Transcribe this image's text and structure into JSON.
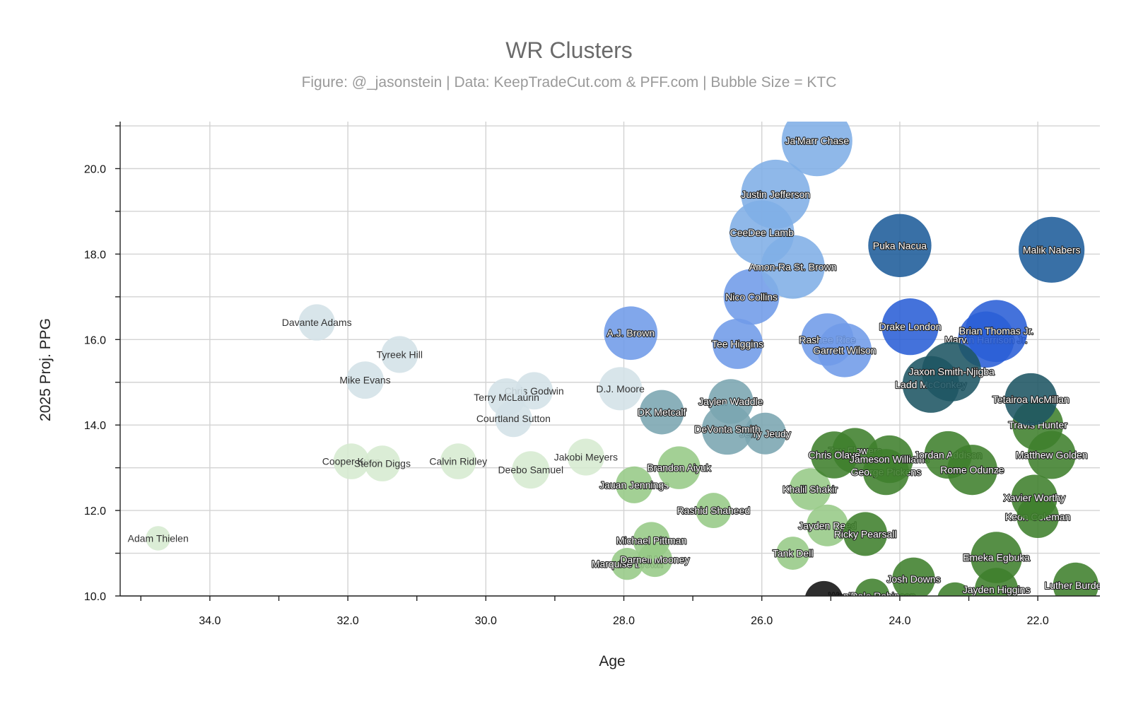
{
  "chart_data": {
    "type": "scatter",
    "title": "WR Clusters",
    "subtitle": "Figure: @_jasonstein | Data: KeepTradeCut.com & PFF.com | Bubble Size = KTC",
    "xlabel": "Age",
    "ylabel": "2025 Proj. PPG",
    "xlim": [
      35.3,
      21.1
    ],
    "ylim": [
      10.0,
      21.1
    ],
    "x_reversed": true,
    "x_ticks": [
      "34.0",
      "32.0",
      "30.0",
      "28.0",
      "26.0",
      "24.0",
      "22.0"
    ],
    "y_ticks": [
      "10.0",
      "12.0",
      "14.0",
      "16.0",
      "18.0",
      "20.0"
    ],
    "grid": true,
    "cluster_colors": {
      "elite": "#7faee6",
      "blue": "#6f9be8",
      "bright": "#2a5fd6",
      "navy": "#1e5c9a",
      "veteran": "#d3e1e7",
      "teal": "#7aa5b0",
      "deepteal": "#1e5563",
      "lightgreen": "#d6ead0",
      "midgreen": "#96c986",
      "darkgreen": "#3f7f2c",
      "black": "#111111"
    },
    "points": [
      {
        "name": "Ja'Marr Chase",
        "x": 25.2,
        "y": 20.65,
        "ktc": 9999,
        "cluster": "elite"
      },
      {
        "name": "Justin Jefferson",
        "x": 25.8,
        "y": 19.4,
        "ktc": 9700,
        "cluster": "elite"
      },
      {
        "name": "CeeDee Lamb",
        "x": 26.0,
        "y": 18.5,
        "ktc": 8900,
        "cluster": "elite"
      },
      {
        "name": "Amon-Ra St. Brown",
        "x": 25.55,
        "y": 17.7,
        "ktc": 8700,
        "cluster": "elite"
      },
      {
        "name": "Puka Nacua",
        "x": 24.0,
        "y": 18.2,
        "ktc": 8600,
        "cluster": "navy"
      },
      {
        "name": "Malik Nabers",
        "x": 21.8,
        "y": 18.1,
        "ktc": 9100,
        "cluster": "navy"
      },
      {
        "name": "Nico Collins",
        "x": 26.15,
        "y": 17.0,
        "ktc": 7200,
        "cluster": "blue"
      },
      {
        "name": "A.J. Brown",
        "x": 27.9,
        "y": 16.15,
        "ktc": 6800,
        "cluster": "blue"
      },
      {
        "name": "Tee Higgins",
        "x": 26.35,
        "y": 15.9,
        "ktc": 6200,
        "cluster": "blue"
      },
      {
        "name": "Rashee Rice",
        "x": 25.05,
        "y": 16.0,
        "ktc": 6600,
        "cluster": "blue"
      },
      {
        "name": "Garrett Wilson",
        "x": 24.8,
        "y": 15.75,
        "ktc": 6900,
        "cluster": "blue"
      },
      {
        "name": "Drake London",
        "x": 23.85,
        "y": 16.3,
        "ktc": 7400,
        "cluster": "bright"
      },
      {
        "name": "Brian Thomas Jr.",
        "x": 22.6,
        "y": 16.2,
        "ktc": 8400,
        "cluster": "bright"
      },
      {
        "name": "Marvin Harrison Jr.",
        "x": 22.75,
        "y": 16.0,
        "ktc": 7300,
        "cluster": "bright"
      },
      {
        "name": "Jaxon Smith-Njigba",
        "x": 23.25,
        "y": 15.25,
        "ktc": 7900,
        "cluster": "deepteal"
      },
      {
        "name": "Ladd McConkey",
        "x": 23.55,
        "y": 14.95,
        "ktc": 7400,
        "cluster": "deepteal"
      },
      {
        "name": "Tetairoa McMillan",
        "x": 22.1,
        "y": 14.6,
        "ktc": 6600,
        "cluster": "deepteal"
      },
      {
        "name": "Davante Adams",
        "x": 32.45,
        "y": 16.4,
        "ktc": 3600,
        "cluster": "veteran"
      },
      {
        "name": "Tyreek Hill",
        "x": 31.25,
        "y": 15.65,
        "ktc": 3700,
        "cluster": "veteran"
      },
      {
        "name": "Mike Evans",
        "x": 31.75,
        "y": 15.05,
        "ktc": 3800,
        "cluster": "veteran"
      },
      {
        "name": "Terry McLaurin",
        "x": 29.7,
        "y": 14.65,
        "ktc": 3900,
        "cluster": "veteran"
      },
      {
        "name": "Chris Godwin",
        "x": 29.3,
        "y": 14.8,
        "ktc": 3800,
        "cluster": "veteran"
      },
      {
        "name": "D.J. Moore",
        "x": 28.05,
        "y": 14.85,
        "ktc": 4900,
        "cluster": "veteran"
      },
      {
        "name": "Courtland Sutton",
        "x": 29.6,
        "y": 14.15,
        "ktc": 3700,
        "cluster": "veteran"
      },
      {
        "name": "DK Metcalf",
        "x": 27.45,
        "y": 14.3,
        "ktc": 5100,
        "cluster": "teal"
      },
      {
        "name": "Jaylen Waddle",
        "x": 26.45,
        "y": 14.55,
        "ktc": 5200,
        "cluster": "teal"
      },
      {
        "name": "DeVonta Smith",
        "x": 26.5,
        "y": 13.9,
        "ktc": 6300,
        "cluster": "teal"
      },
      {
        "name": "Jerry Jeudy",
        "x": 25.95,
        "y": 13.8,
        "ktc": 4600,
        "cluster": "teal"
      },
      {
        "name": "Adam Thielen",
        "x": 34.75,
        "y": 11.35,
        "ktc": 1400,
        "cluster": "lightgreen"
      },
      {
        "name": "Cooper Kupp",
        "x": 31.95,
        "y": 13.15,
        "ktc": 3500,
        "cluster": "lightgreen"
      },
      {
        "name": "Stefon Diggs",
        "x": 31.5,
        "y": 13.1,
        "ktc": 3500,
        "cluster": "lightgreen"
      },
      {
        "name": "Calvin Ridley",
        "x": 30.4,
        "y": 13.15,
        "ktc": 3500,
        "cluster": "lightgreen"
      },
      {
        "name": "Deebo Samuel",
        "x": 29.35,
        "y": 12.95,
        "ktc": 3800,
        "cluster": "lightgreen"
      },
      {
        "name": "Jakobi Meyers",
        "x": 28.55,
        "y": 13.25,
        "ktc": 3700,
        "cluster": "lightgreen"
      },
      {
        "name": "Brandon Aiyuk",
        "x": 27.2,
        "y": 13.0,
        "ktc": 4800,
        "cluster": "midgreen"
      },
      {
        "name": "Jauan Jennings",
        "x": 27.85,
        "y": 12.6,
        "ktc": 3700,
        "cluster": "midgreen"
      },
      {
        "name": "Rashid Shaheed",
        "x": 26.7,
        "y": 12.0,
        "ktc": 3400,
        "cluster": "midgreen"
      },
      {
        "name": "Michael Pittman",
        "x": 27.6,
        "y": 11.3,
        "ktc": 3700,
        "cluster": "midgreen"
      },
      {
        "name": "Darnell Mooney",
        "x": 27.55,
        "y": 10.85,
        "ktc": 3300,
        "cluster": "midgreen"
      },
      {
        "name": "Marquise Brown",
        "x": 27.95,
        "y": 10.75,
        "ktc": 2800,
        "cluster": "midgreen"
      },
      {
        "name": "Khalil Shakir",
        "x": 25.3,
        "y": 12.5,
        "ktc": 4600,
        "cluster": "midgreen"
      },
      {
        "name": "Jayden Reed",
        "x": 25.05,
        "y": 11.65,
        "ktc": 4600,
        "cluster": "midgreen"
      },
      {
        "name": "Tank Dell",
        "x": 25.55,
        "y": 11.0,
        "ktc": 3000,
        "cluster": "midgreen"
      },
      {
        "name": "Zay Flowers",
        "x": 24.65,
        "y": 13.4,
        "ktc": 5300,
        "cluster": "darkgreen"
      },
      {
        "name": "Chris Olave",
        "x": 24.95,
        "y": 13.3,
        "ktc": 5600,
        "cluster": "darkgreen"
      },
      {
        "name": "Jameson Williams",
        "x": 24.15,
        "y": 13.2,
        "ktc": 5700,
        "cluster": "darkgreen"
      },
      {
        "name": "George Pickens",
        "x": 24.2,
        "y": 12.9,
        "ktc": 5400,
        "cluster": "darkgreen"
      },
      {
        "name": "Jordan Addison",
        "x": 23.3,
        "y": 13.3,
        "ktc": 5700,
        "cluster": "darkgreen"
      },
      {
        "name": "Rome Odunze",
        "x": 22.95,
        "y": 12.95,
        "ktc": 6200,
        "cluster": "darkgreen"
      },
      {
        "name": "Travis Hunter",
        "x": 22.0,
        "y": 14.0,
        "ktc": 6300,
        "cluster": "darkgreen"
      },
      {
        "name": "Matthew Golden",
        "x": 21.8,
        "y": 13.3,
        "ktc": 5800,
        "cluster": "darkgreen"
      },
      {
        "name": "Xavier Worthy",
        "x": 22.05,
        "y": 12.3,
        "ktc": 5400,
        "cluster": "darkgreen"
      },
      {
        "name": "Keon Coleman",
        "x": 22.0,
        "y": 11.85,
        "ktc": 4700,
        "cluster": "darkgreen"
      },
      {
        "name": "Ricky Pearsall",
        "x": 24.5,
        "y": 11.45,
        "ktc": 5000,
        "cluster": "darkgreen"
      },
      {
        "name": "Emeka Egbuka",
        "x": 22.6,
        "y": 10.9,
        "ktc": 6400,
        "cluster": "darkgreen"
      },
      {
        "name": "Josh Downs",
        "x": 23.8,
        "y": 10.4,
        "ktc": 4800,
        "cluster": "darkgreen"
      },
      {
        "name": "Jayden Higgins",
        "x": 22.6,
        "y": 10.15,
        "ktc": 4900,
        "cluster": "darkgreen"
      },
      {
        "name": "Luther Burden",
        "x": 21.45,
        "y": 10.25,
        "ktc": 5300,
        "cluster": "darkgreen"
      },
      {
        "name": "Wan'Dale Robinson",
        "x": 24.4,
        "y": 10.0,
        "ktc": 3300,
        "cluster": "darkgreen"
      },
      {
        "name": "",
        "x": 23.2,
        "y": 9.9,
        "ktc": 3500,
        "cluster": "darkgreen"
      },
      {
        "name": "",
        "x": 25.1,
        "y": 9.9,
        "ktc": 4000,
        "cluster": "black"
      }
    ]
  }
}
